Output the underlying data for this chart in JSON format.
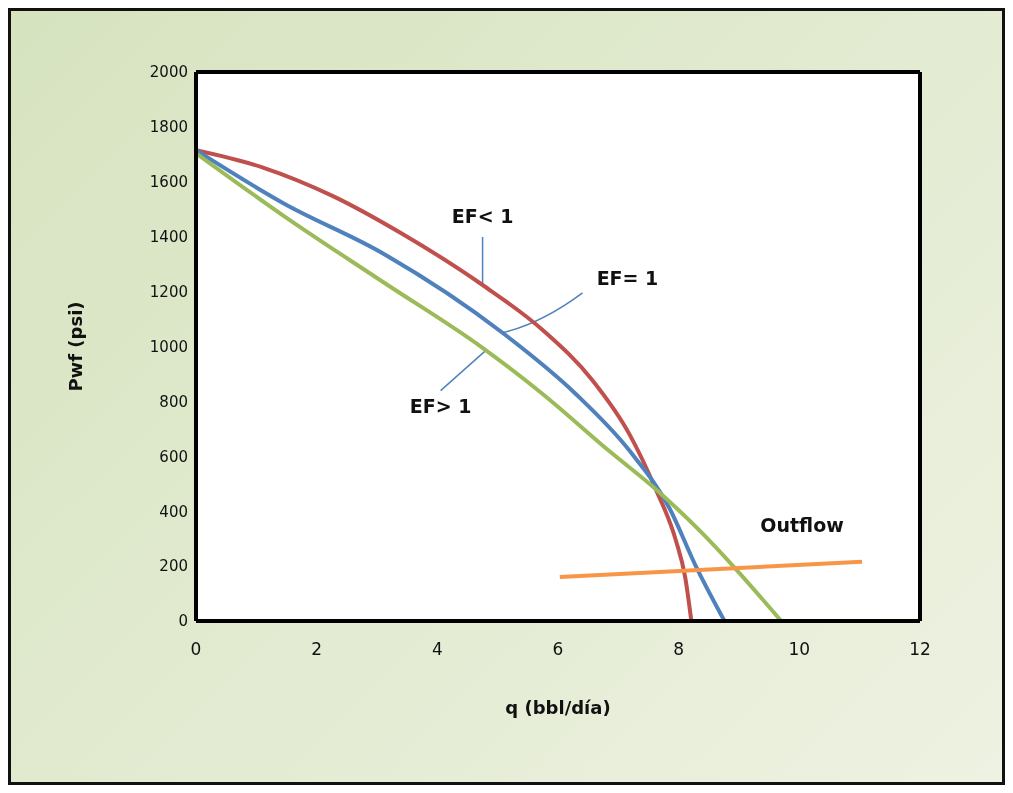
{
  "chart_data": {
    "type": "line",
    "xlabel": "q (bbl/día)",
    "ylabel": "Pwf (psi)",
    "xlim": [
      0,
      12
    ],
    "xticks": [
      0,
      2,
      4,
      6,
      8,
      10,
      12
    ],
    "ylim": [
      0,
      2000
    ],
    "yticks": [
      0,
      200,
      400,
      600,
      800,
      1000,
      1200,
      1400,
      1600,
      1800,
      2000
    ],
    "marker": "none",
    "line_style": "solid",
    "series": [
      {
        "color": "#c0504d",
        "x": [
          0,
          1.11,
          2.27,
          3.43,
          4.75,
          5.74,
          6.57,
          7.19,
          7.62,
          7.95,
          8.11,
          8.21
        ],
        "values": [
          1715,
          1652,
          1548,
          1409,
          1224,
          1061,
          877,
          678,
          480,
          296,
          157,
          0
        ]
      },
      {
        "color": "#4f81bd",
        "x": [
          0,
          1.44,
          3.1,
          5.08,
          6.29,
          7.19,
          7.85,
          8.28,
          8.76
        ],
        "values": [
          1715,
          1523,
          1339,
          1050,
          828,
          619,
          410,
          202,
          0
        ]
      },
      {
        "color": "#9bbb59",
        "x": [
          0,
          1.44,
          3.1,
          4.75,
          5.74,
          6.85,
          7.62,
          8.39,
          8.94,
          9.7
        ],
        "values": [
          1704,
          1478,
          1235,
          995,
          828,
          619,
          480,
          320,
          191,
          0
        ]
      },
      {
        "name": "Outflow",
        "color": "#f79646",
        "x": [
          6.03,
          11.04
        ],
        "values": [
          160,
          216
        ]
      }
    ],
    "annotations": [
      {
        "text": "EF< 1",
        "x": 4.75,
        "y": 1224
      },
      {
        "text": "EF= 1",
        "x": 5.08,
        "y": 1050
      },
      {
        "text": "EF> 1",
        "x": 4.8,
        "y": 985
      }
    ]
  }
}
